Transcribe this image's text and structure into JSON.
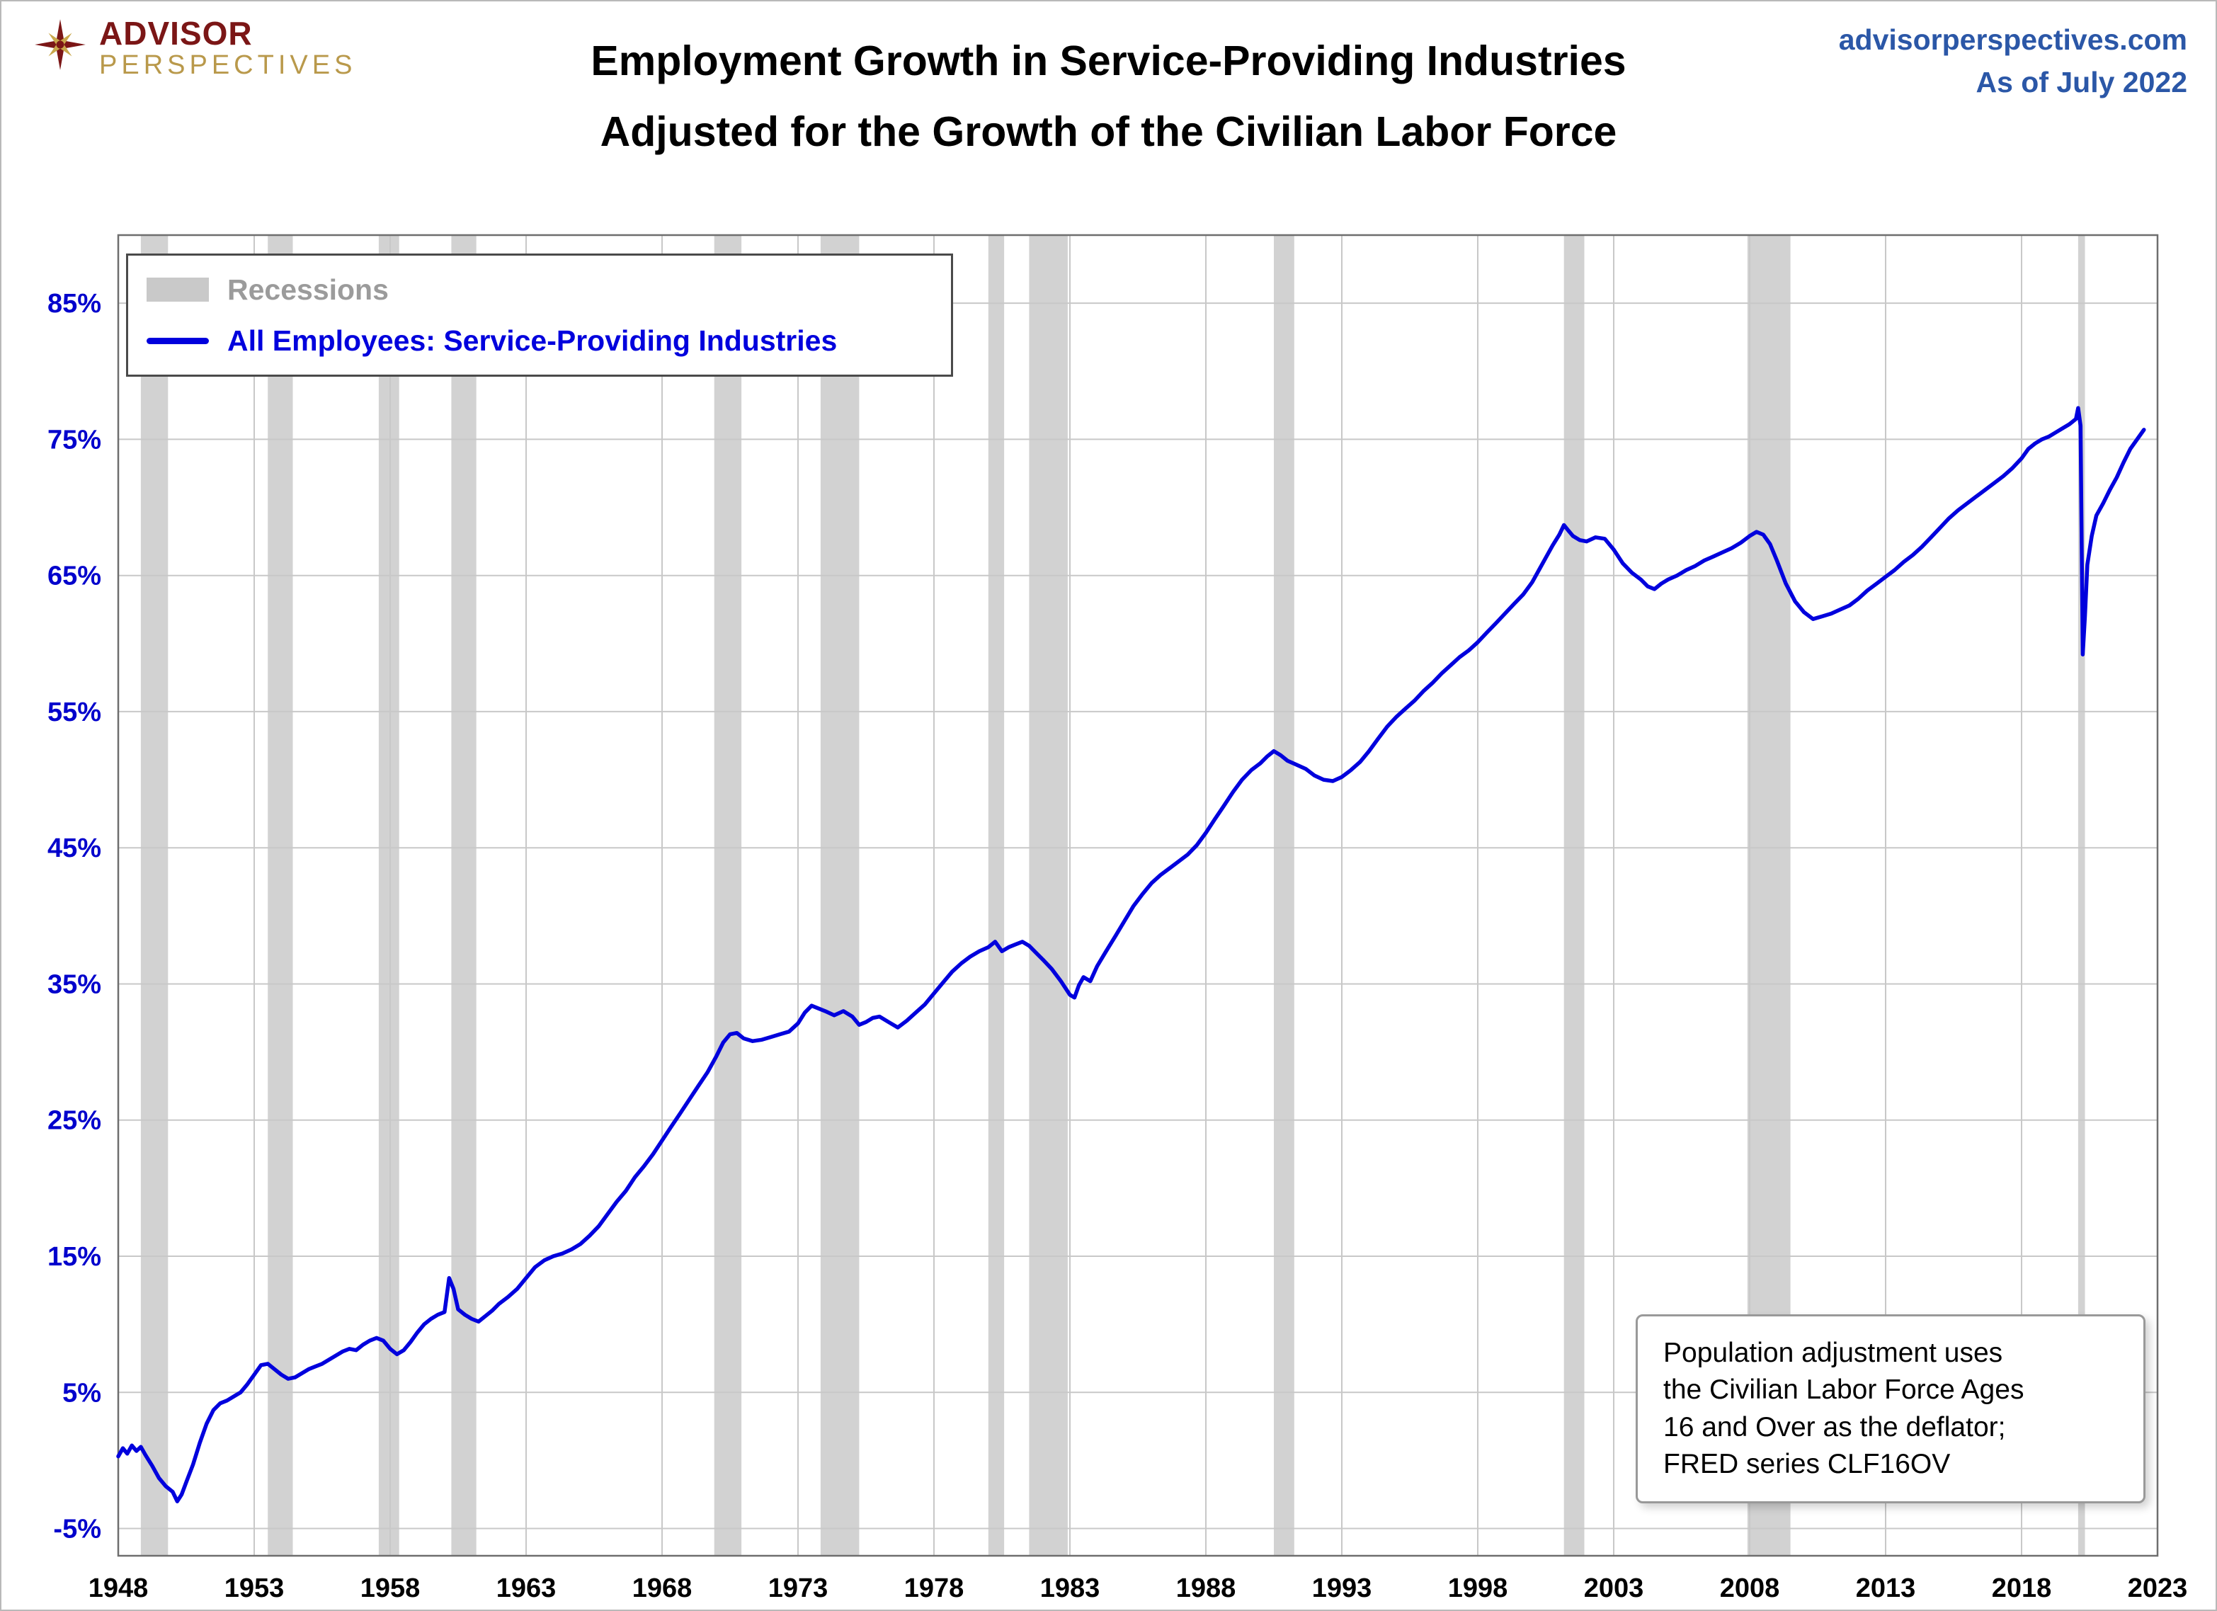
{
  "header": {
    "logo_line1": "ADVISOR",
    "logo_line2": "PERSPECTIVES",
    "title_line1": "Employment Growth in Service-Providing Industries",
    "title_line2": "Adjusted for the Growth of the Civilian Labor Force",
    "site": "advisorperspectives.com",
    "as_of": "As of July 2022"
  },
  "legend": {
    "recessions_label": "Recessions",
    "series_label": "All Employees: Service-Providing Industries"
  },
  "note_box": {
    "lines": [
      "Population adjustment uses",
      "the Civilian Labor Force Ages",
      "16 and Over as the deflator;",
      "FRED series  CLF16OV"
    ]
  },
  "colors": {
    "line_blue": "#0000dd",
    "axis_label_blue": "#0000cc",
    "x_label_black": "#000000",
    "recession_gray": "#d2d2d2",
    "gridline_gray": "#c8c8c8",
    "plot_border_gray": "#6e6e6e",
    "header_blue": "#2b57a7",
    "logo_maroon": "#7b1616",
    "logo_gold": "#b9994b"
  },
  "chart_data": {
    "type": "line",
    "title": "Employment Growth in Service-Providing Industries Adjusted for the Growth of the Civilian Labor Force",
    "xlabel": "",
    "ylabel": "",
    "x_range": [
      1948,
      2023
    ],
    "y_range": [
      -7,
      90
    ],
    "x_ticks": [
      1948,
      1953,
      1958,
      1963,
      1968,
      1973,
      1978,
      1983,
      1988,
      1993,
      1998,
      2003,
      2008,
      2013,
      2018,
      2023
    ],
    "y_ticks": [
      [
        -5,
        "-5%"
      ],
      [
        5,
        "5%"
      ],
      [
        15,
        "15%"
      ],
      [
        25,
        "25%"
      ],
      [
        35,
        "35%"
      ],
      [
        45,
        "45%"
      ],
      [
        55,
        "55%"
      ],
      [
        65,
        "65%"
      ],
      [
        75,
        "75%"
      ],
      [
        85,
        "85%"
      ]
    ],
    "grid": true,
    "legend_position": "top-left",
    "recessions": [
      [
        1948.83,
        1949.83
      ],
      [
        1953.5,
        1954.42
      ],
      [
        1957.58,
        1958.33
      ],
      [
        1960.25,
        1961.17
      ],
      [
        1969.92,
        1970.92
      ],
      [
        1973.83,
        1975.25
      ],
      [
        1980.0,
        1980.58
      ],
      [
        1981.5,
        1982.92
      ],
      [
        1990.5,
        1991.25
      ],
      [
        2001.17,
        2001.92
      ],
      [
        2007.92,
        2009.5
      ],
      [
        2020.08,
        2020.33
      ]
    ],
    "series": [
      {
        "name": "All Employees: Service-Providing Industries",
        "color": "#0000dd",
        "points": [
          [
            1948,
            0.3
          ],
          [
            1948.17,
            0.9
          ],
          [
            1948.33,
            0.5
          ],
          [
            1948.5,
            1.1
          ],
          [
            1948.67,
            0.7
          ],
          [
            1948.83,
            1.0
          ],
          [
            1949,
            0.4
          ],
          [
            1949.25,
            -0.4
          ],
          [
            1949.5,
            -1.3
          ],
          [
            1949.75,
            -1.9
          ],
          [
            1950,
            -2.3
          ],
          [
            1950.17,
            -3.0
          ],
          [
            1950.33,
            -2.5
          ],
          [
            1950.5,
            -1.6
          ],
          [
            1950.75,
            -0.3
          ],
          [
            1951,
            1.3
          ],
          [
            1951.25,
            2.7
          ],
          [
            1951.5,
            3.7
          ],
          [
            1951.75,
            4.2
          ],
          [
            1952,
            4.4
          ],
          [
            1952.25,
            4.7
          ],
          [
            1952.5,
            5.0
          ],
          [
            1952.75,
            5.6
          ],
          [
            1953,
            6.3
          ],
          [
            1953.25,
            7.0
          ],
          [
            1953.5,
            7.1
          ],
          [
            1953.75,
            6.7
          ],
          [
            1954,
            6.3
          ],
          [
            1954.25,
            6.0
          ],
          [
            1954.5,
            6.1
          ],
          [
            1954.75,
            6.4
          ],
          [
            1955,
            6.7
          ],
          [
            1955.25,
            6.9
          ],
          [
            1955.5,
            7.1
          ],
          [
            1955.75,
            7.4
          ],
          [
            1956,
            7.7
          ],
          [
            1956.25,
            8.0
          ],
          [
            1956.5,
            8.2
          ],
          [
            1956.75,
            8.1
          ],
          [
            1957,
            8.5
          ],
          [
            1957.25,
            8.8
          ],
          [
            1957.5,
            9.0
          ],
          [
            1957.75,
            8.8
          ],
          [
            1958,
            8.2
          ],
          [
            1958.25,
            7.8
          ],
          [
            1958.5,
            8.1
          ],
          [
            1958.75,
            8.7
          ],
          [
            1959,
            9.4
          ],
          [
            1959.25,
            10.0
          ],
          [
            1959.5,
            10.4
          ],
          [
            1959.75,
            10.7
          ],
          [
            1960,
            10.9
          ],
          [
            1960.17,
            13.4
          ],
          [
            1960.33,
            12.6
          ],
          [
            1960.5,
            11.1
          ],
          [
            1960.75,
            10.7
          ],
          [
            1961,
            10.4
          ],
          [
            1961.25,
            10.2
          ],
          [
            1961.5,
            10.6
          ],
          [
            1961.75,
            11.0
          ],
          [
            1962,
            11.5
          ],
          [
            1962.33,
            12.0
          ],
          [
            1962.67,
            12.6
          ],
          [
            1963,
            13.4
          ],
          [
            1963.33,
            14.2
          ],
          [
            1963.67,
            14.7
          ],
          [
            1964,
            15.0
          ],
          [
            1964.33,
            15.2
          ],
          [
            1964.67,
            15.5
          ],
          [
            1965,
            15.9
          ],
          [
            1965.33,
            16.5
          ],
          [
            1965.67,
            17.2
          ],
          [
            1966,
            18.1
          ],
          [
            1966.33,
            19.0
          ],
          [
            1966.67,
            19.8
          ],
          [
            1967,
            20.8
          ],
          [
            1967.33,
            21.6
          ],
          [
            1967.67,
            22.5
          ],
          [
            1968,
            23.5
          ],
          [
            1968.33,
            24.5
          ],
          [
            1968.67,
            25.5
          ],
          [
            1969,
            26.5
          ],
          [
            1969.33,
            27.5
          ],
          [
            1969.67,
            28.5
          ],
          [
            1970,
            29.7
          ],
          [
            1970.25,
            30.7
          ],
          [
            1970.5,
            31.3
          ],
          [
            1970.75,
            31.4
          ],
          [
            1971,
            31.0
          ],
          [
            1971.33,
            30.8
          ],
          [
            1971.67,
            30.9
          ],
          [
            1972,
            31.1
          ],
          [
            1972.33,
            31.3
          ],
          [
            1972.67,
            31.5
          ],
          [
            1973,
            32.1
          ],
          [
            1973.25,
            32.9
          ],
          [
            1973.5,
            33.4
          ],
          [
            1973.75,
            33.2
          ],
          [
            1974,
            33.0
          ],
          [
            1974.33,
            32.7
          ],
          [
            1974.67,
            33.0
          ],
          [
            1975,
            32.6
          ],
          [
            1975.25,
            32.0
          ],
          [
            1975.5,
            32.2
          ],
          [
            1975.75,
            32.5
          ],
          [
            1976,
            32.6
          ],
          [
            1976.33,
            32.2
          ],
          [
            1976.67,
            31.8
          ],
          [
            1977,
            32.3
          ],
          [
            1977.33,
            32.9
          ],
          [
            1977.67,
            33.5
          ],
          [
            1978,
            34.3
          ],
          [
            1978.33,
            35.1
          ],
          [
            1978.67,
            35.9
          ],
          [
            1979,
            36.5
          ],
          [
            1979.33,
            37.0
          ],
          [
            1979.67,
            37.4
          ],
          [
            1980,
            37.7
          ],
          [
            1980.25,
            38.1
          ],
          [
            1980.5,
            37.4
          ],
          [
            1980.75,
            37.7
          ],
          [
            1981,
            37.9
          ],
          [
            1981.25,
            38.1
          ],
          [
            1981.5,
            37.8
          ],
          [
            1981.75,
            37.3
          ],
          [
            1982,
            36.8
          ],
          [
            1982.33,
            36.1
          ],
          [
            1982.67,
            35.2
          ],
          [
            1983,
            34.2
          ],
          [
            1983.17,
            34.0
          ],
          [
            1983.33,
            34.9
          ],
          [
            1983.5,
            35.5
          ],
          [
            1983.75,
            35.2
          ],
          [
            1984,
            36.3
          ],
          [
            1984.33,
            37.4
          ],
          [
            1984.67,
            38.5
          ],
          [
            1985,
            39.6
          ],
          [
            1985.33,
            40.7
          ],
          [
            1985.67,
            41.6
          ],
          [
            1986,
            42.4
          ],
          [
            1986.33,
            43.0
          ],
          [
            1986.67,
            43.5
          ],
          [
            1987,
            44.0
          ],
          [
            1987.33,
            44.5
          ],
          [
            1987.67,
            45.2
          ],
          [
            1988,
            46.1
          ],
          [
            1988.33,
            47.1
          ],
          [
            1988.67,
            48.1
          ],
          [
            1989,
            49.1
          ],
          [
            1989.33,
            50.0
          ],
          [
            1989.67,
            50.7
          ],
          [
            1990,
            51.2
          ],
          [
            1990.25,
            51.7
          ],
          [
            1990.5,
            52.1
          ],
          [
            1990.75,
            51.8
          ],
          [
            1991,
            51.4
          ],
          [
            1991.33,
            51.1
          ],
          [
            1991.67,
            50.8
          ],
          [
            1992,
            50.3
          ],
          [
            1992.33,
            50.0
          ],
          [
            1992.67,
            49.9
          ],
          [
            1993,
            50.2
          ],
          [
            1993.33,
            50.7
          ],
          [
            1993.67,
            51.3
          ],
          [
            1994,
            52.1
          ],
          [
            1994.33,
            53.0
          ],
          [
            1994.67,
            53.9
          ],
          [
            1995,
            54.6
          ],
          [
            1995.33,
            55.2
          ],
          [
            1995.67,
            55.8
          ],
          [
            1996,
            56.5
          ],
          [
            1996.33,
            57.1
          ],
          [
            1996.67,
            57.8
          ],
          [
            1997,
            58.4
          ],
          [
            1997.33,
            59.0
          ],
          [
            1997.67,
            59.5
          ],
          [
            1998,
            60.1
          ],
          [
            1998.33,
            60.8
          ],
          [
            1998.67,
            61.5
          ],
          [
            1999,
            62.2
          ],
          [
            1999.33,
            62.9
          ],
          [
            1999.67,
            63.6
          ],
          [
            2000,
            64.5
          ],
          [
            2000.25,
            65.4
          ],
          [
            2000.5,
            66.3
          ],
          [
            2000.75,
            67.2
          ],
          [
            2001,
            68.0
          ],
          [
            2001.17,
            68.7
          ],
          [
            2001.33,
            68.3
          ],
          [
            2001.5,
            67.9
          ],
          [
            2001.75,
            67.6
          ],
          [
            2002,
            67.5
          ],
          [
            2002.33,
            67.8
          ],
          [
            2002.67,
            67.7
          ],
          [
            2003,
            66.9
          ],
          [
            2003.33,
            65.9
          ],
          [
            2003.67,
            65.2
          ],
          [
            2004,
            64.7
          ],
          [
            2004.25,
            64.2
          ],
          [
            2004.5,
            64.0
          ],
          [
            2004.75,
            64.4
          ],
          [
            2005,
            64.7
          ],
          [
            2005.33,
            65.0
          ],
          [
            2005.67,
            65.4
          ],
          [
            2006,
            65.7
          ],
          [
            2006.33,
            66.1
          ],
          [
            2006.67,
            66.4
          ],
          [
            2007,
            66.7
          ],
          [
            2007.33,
            67.0
          ],
          [
            2007.67,
            67.4
          ],
          [
            2008,
            67.9
          ],
          [
            2008.25,
            68.2
          ],
          [
            2008.5,
            68.0
          ],
          [
            2008.75,
            67.3
          ],
          [
            2009,
            66.1
          ],
          [
            2009.33,
            64.4
          ],
          [
            2009.67,
            63.1
          ],
          [
            2010,
            62.3
          ],
          [
            2010.33,
            61.8
          ],
          [
            2010.67,
            62.0
          ],
          [
            2011,
            62.2
          ],
          [
            2011.33,
            62.5
          ],
          [
            2011.67,
            62.8
          ],
          [
            2012,
            63.3
          ],
          [
            2012.33,
            63.9
          ],
          [
            2012.67,
            64.4
          ],
          [
            2013,
            64.9
          ],
          [
            2013.33,
            65.4
          ],
          [
            2013.67,
            66.0
          ],
          [
            2014,
            66.5
          ],
          [
            2014.33,
            67.1
          ],
          [
            2014.67,
            67.8
          ],
          [
            2015,
            68.5
          ],
          [
            2015.33,
            69.2
          ],
          [
            2015.67,
            69.8
          ],
          [
            2016,
            70.3
          ],
          [
            2016.33,
            70.8
          ],
          [
            2016.67,
            71.3
          ],
          [
            2017,
            71.8
          ],
          [
            2017.33,
            72.3
          ],
          [
            2017.67,
            72.9
          ],
          [
            2018,
            73.6
          ],
          [
            2018.25,
            74.3
          ],
          [
            2018.5,
            74.7
          ],
          [
            2018.75,
            75.0
          ],
          [
            2019,
            75.2
          ],
          [
            2019.25,
            75.5
          ],
          [
            2019.5,
            75.8
          ],
          [
            2019.75,
            76.1
          ],
          [
            2020,
            76.5
          ],
          [
            2020.08,
            77.3
          ],
          [
            2020.17,
            76.0
          ],
          [
            2020.25,
            59.2
          ],
          [
            2020.33,
            62.0
          ],
          [
            2020.42,
            65.8
          ],
          [
            2020.58,
            67.9
          ],
          [
            2020.75,
            69.4
          ],
          [
            2021,
            70.3
          ],
          [
            2021.25,
            71.3
          ],
          [
            2021.5,
            72.2
          ],
          [
            2021.75,
            73.3
          ],
          [
            2022,
            74.3
          ],
          [
            2022.25,
            75.0
          ],
          [
            2022.5,
            75.7
          ]
        ]
      }
    ]
  }
}
